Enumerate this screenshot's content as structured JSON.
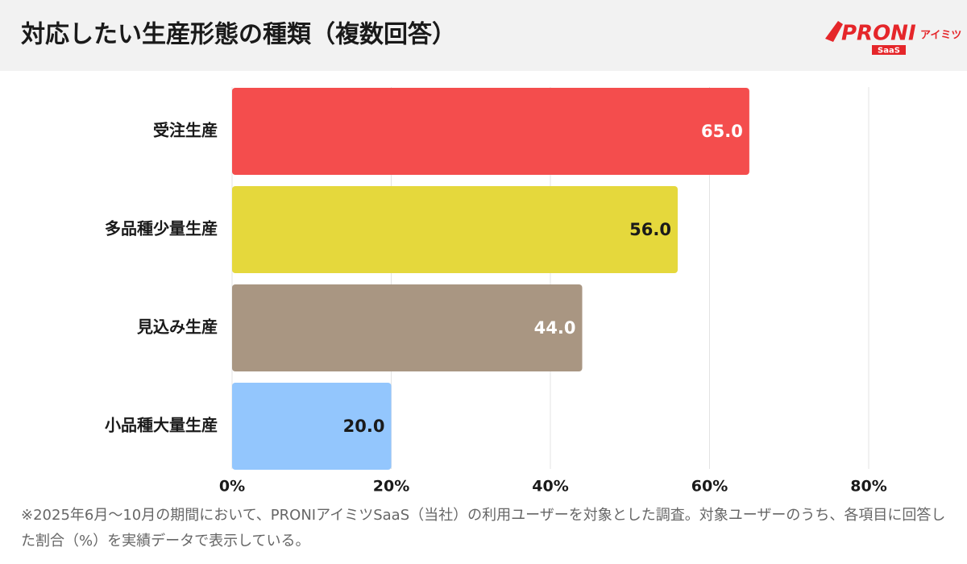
{
  "chart_data": {
    "type": "barh",
    "title": "対応したい生産形態の種類（複数回答）",
    "categories": [
      "受注生産",
      "多品種少量生産",
      "見込み生産",
      "小品種大量生産"
    ],
    "values": [
      65,
      56,
      44,
      20
    ],
    "value_labels": [
      "65.0",
      "56.0",
      "44.0",
      "20.0"
    ],
    "colors": [
      "#f44d4d",
      "#e5d83c",
      "#a99682",
      "#93c6fd"
    ],
    "value_label_colors": [
      "#ffffff",
      "#1a1a1a",
      "#ffffff",
      "#1a1a1a"
    ],
    "xlim": [
      0,
      80
    ],
    "xticks": [
      {
        "value": 0,
        "label": "0%"
      },
      {
        "value": 20,
        "label": "20%"
      },
      {
        "value": 40,
        "label": "40%"
      },
      {
        "value": 60,
        "label": "60%"
      },
      {
        "value": 80,
        "label": "80%"
      }
    ],
    "grid": true,
    "footnote": "※2025年6月〜10月の期間において、PRONIアイミツSaaS（当社）の利用ユーザーを対象とした調査。対象ユーザーのうち、各項目に回答した割合（%）を実績データで表示している。"
  },
  "logo": {
    "name": "PRONI",
    "suffix": "アイミツ",
    "badge": "SaaS"
  }
}
